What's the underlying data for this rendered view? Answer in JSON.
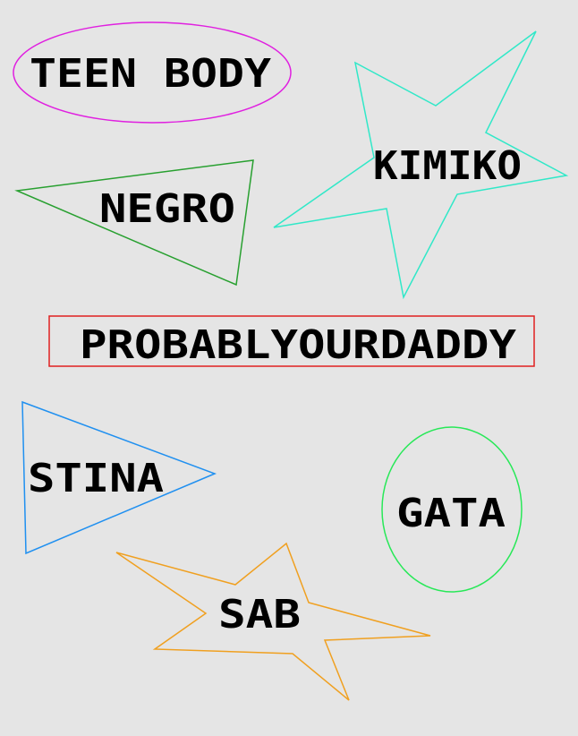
{
  "shapes": [
    {
      "label": "TEEN BODY",
      "shape": "ellipse",
      "color": "#e020e0"
    },
    {
      "label": "KIMIKO",
      "shape": "star",
      "color": "#30e8c8"
    },
    {
      "label": "NEGRO",
      "shape": "triangle",
      "color": "#28a030"
    },
    {
      "label": "PROBABLYOURDADDY",
      "shape": "rectangle",
      "color": "#e02020"
    },
    {
      "label": "STINA",
      "shape": "triangle",
      "color": "#2090f0"
    },
    {
      "label": "GATA",
      "shape": "ellipse",
      "color": "#28e858"
    },
    {
      "label": "SAB",
      "shape": "star",
      "color": "#f0a020"
    }
  ]
}
